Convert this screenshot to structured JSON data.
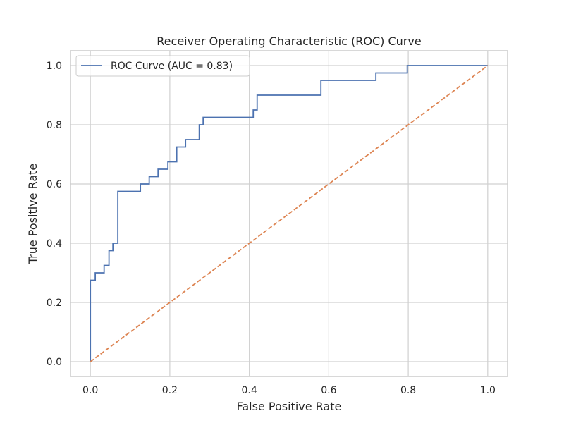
{
  "chart_data": {
    "type": "line",
    "title": "Receiver Operating Characteristic (ROC) Curve",
    "xlabel": "False Positive Rate",
    "ylabel": "True Positive Rate",
    "xlim": [
      -0.05,
      1.05
    ],
    "ylim": [
      -0.05,
      1.05
    ],
    "xticks": [
      "0.0",
      "0.2",
      "0.4",
      "0.6",
      "0.8",
      "1.0"
    ],
    "yticks": [
      "0.0",
      "0.2",
      "0.4",
      "0.6",
      "0.8",
      "1.0"
    ],
    "grid": true,
    "legend_position": "top-left",
    "series": [
      {
        "name": "ROC Curve (AUC = 0.83)",
        "color": "#4c72b0",
        "style": "solid",
        "x": [
          0.0,
          0.0,
          0.0123,
          0.0123,
          0.0346,
          0.0346,
          0.0469,
          0.0469,
          0.0568,
          0.0568,
          0.0691,
          0.0691,
          0.1259,
          0.1259,
          0.1481,
          0.1481,
          0.1704,
          0.1704,
          0.1951,
          0.1951,
          0.2173,
          0.2173,
          0.2395,
          0.2395,
          0.2741,
          0.2741,
          0.2839,
          0.2839,
          0.4099,
          0.4099,
          0.4197,
          0.4197,
          0.5802,
          0.5802,
          0.7185,
          0.7185,
          0.7975,
          0.7975,
          1.0
        ],
        "y": [
          0.0,
          0.275,
          0.275,
          0.3,
          0.3,
          0.325,
          0.325,
          0.375,
          0.375,
          0.4,
          0.4,
          0.575,
          0.575,
          0.6,
          0.6,
          0.625,
          0.625,
          0.65,
          0.65,
          0.675,
          0.675,
          0.725,
          0.725,
          0.75,
          0.75,
          0.8,
          0.8,
          0.825,
          0.825,
          0.85,
          0.85,
          0.9,
          0.9,
          0.95,
          0.95,
          0.975,
          0.975,
          1.0,
          1.0
        ]
      },
      {
        "color": "#dd8452",
        "style": "dashed",
        "x": [
          0.0,
          1.0
        ],
        "y": [
          0.0,
          1.0
        ]
      }
    ]
  },
  "colors": {
    "grid": "#d0d0d0",
    "frame": "#cccccc",
    "text": "#262626",
    "legend_border": "#cccccc"
  }
}
